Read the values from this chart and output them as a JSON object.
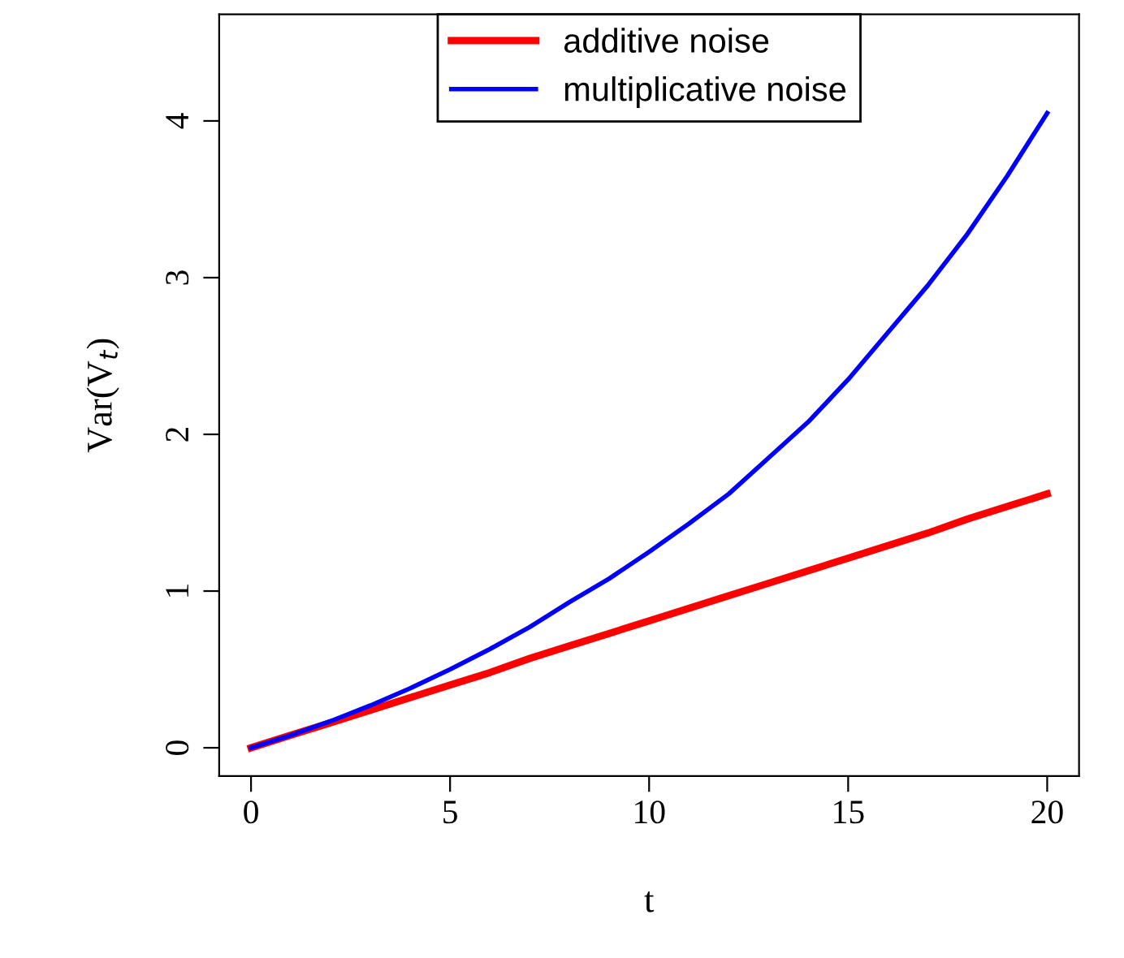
{
  "chart_data": {
    "type": "line",
    "xlabel": "t",
    "ylabel": "Var(V$_{t}$)",
    "x": [
      0,
      1,
      2,
      3,
      4,
      5,
      6,
      7,
      8,
      9,
      10,
      11,
      12,
      13,
      14,
      15,
      16,
      17,
      18,
      19,
      20
    ],
    "series": [
      {
        "name": "additive noise",
        "color": "#ff0000",
        "values": [
          0,
          0.08,
          0.16,
          0.24,
          0.32,
          0.4,
          0.48,
          0.57,
          0.65,
          0.73,
          0.81,
          0.89,
          0.97,
          1.05,
          1.13,
          1.21,
          1.29,
          1.37,
          1.46,
          1.54,
          1.62
        ]
      },
      {
        "name": "multiplicative noise",
        "color": "#0000ff",
        "values": [
          0,
          0.08,
          0.17,
          0.27,
          0.38,
          0.5,
          0.63,
          0.77,
          0.93,
          1.08,
          1.25,
          1.43,
          1.62,
          1.85,
          2.08,
          2.35,
          2.65,
          2.95,
          3.28,
          3.65,
          4.05
        ]
      }
    ],
    "xlim": [
      -0.8,
      20.8
    ],
    "ylim": [
      -0.18,
      4.68
    ],
    "xticks": [
      0,
      5,
      10,
      15,
      20
    ],
    "yticks": [
      0,
      1,
      2,
      3,
      4
    ],
    "grid": false,
    "legend": "top",
    "marker": "none",
    "line_style": "solid"
  }
}
